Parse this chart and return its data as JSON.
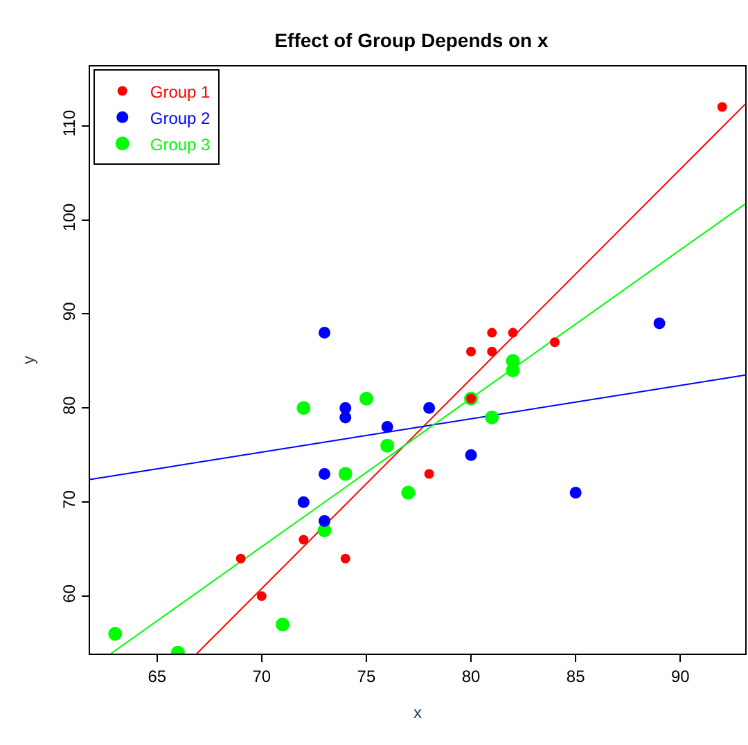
{
  "chart_data": {
    "type": "scatter",
    "title": "Effect of Group Depends on x",
    "xlabel": "x",
    "ylabel": "y",
    "xlim": [
      61.8,
      93.1
    ],
    "ylim": [
      53.9,
      116.3
    ],
    "xticks": [
      65,
      70,
      75,
      80,
      85,
      90
    ],
    "yticks": [
      60,
      70,
      80,
      90,
      100,
      110
    ],
    "grid": false,
    "legend": "top left",
    "marker": "circle",
    "series": [
      {
        "name": "Group 1",
        "color": "#ff0000",
        "x": [
          69,
          70,
          72,
          74,
          78,
          80,
          80,
          81,
          81,
          82,
          84,
          92
        ],
        "values": [
          64,
          60,
          66,
          64,
          73,
          86,
          81,
          88,
          86,
          88,
          87,
          112
        ]
      },
      {
        "name": "Group 2",
        "color": "#0000ff",
        "x": [
          72,
          73,
          73,
          73,
          74,
          74,
          76,
          78,
          80,
          85,
          89
        ],
        "values": [
          70,
          88,
          73,
          68,
          80,
          79,
          78,
          80,
          75,
          71,
          89
        ]
      },
      {
        "name": "Group 3",
        "color": "#00ff00",
        "x": [
          63,
          66,
          71,
          72,
          73,
          74,
          75,
          76,
          77,
          80,
          81,
          82,
          82
        ],
        "values": [
          56,
          54,
          57,
          80,
          67,
          73,
          81,
          76,
          71,
          81,
          79,
          85,
          84
        ]
      },
      {
        "type": "line",
        "marker": "none",
        "color": "#ff0000",
        "x": [
          66.9,
          93.1
        ],
        "values": [
          53.9,
          112.3
        ]
      },
      {
        "type": "line",
        "marker": "none",
        "color": "#0000ff",
        "x": [
          61.8,
          93.1
        ],
        "values": [
          72.4,
          83.5
        ]
      },
      {
        "type": "line",
        "marker": "none",
        "color": "#00ff00",
        "x": [
          62.8,
          93.1
        ],
        "values": [
          53.9,
          101.7
        ]
      }
    ]
  }
}
